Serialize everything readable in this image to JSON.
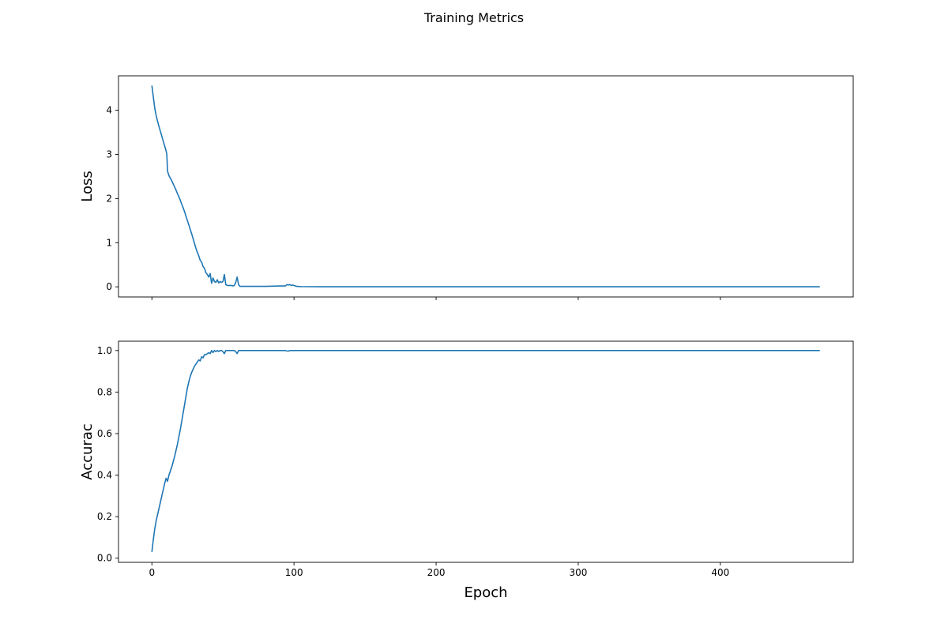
{
  "figure": {
    "title": "Training Metrics"
  },
  "chart_data": [
    {
      "type": "line",
      "ylabel": "Loss",
      "xlabel": "",
      "xlim": [
        -23.5,
        493.5
      ],
      "ylim": [
        -0.23,
        4.78
      ],
      "xticks": [
        0,
        100,
        200,
        300,
        400
      ],
      "xtick_labels_visible": false,
      "yticks": [
        0,
        1,
        2,
        3,
        4
      ],
      "ytick_labels": [
        "0",
        "1",
        "2",
        "3",
        "4"
      ],
      "grid": false,
      "color": "#1f77b4",
      "points": [
        [
          0,
          4.56
        ],
        [
          1,
          4.3
        ],
        [
          2,
          4.05
        ],
        [
          3,
          3.88
        ],
        [
          4,
          3.75
        ],
        [
          5,
          3.63
        ],
        [
          6,
          3.52
        ],
        [
          7,
          3.41
        ],
        [
          8,
          3.3
        ],
        [
          9,
          3.19
        ],
        [
          10,
          3.08
        ],
        [
          10.5,
          3.0
        ],
        [
          11,
          2.62
        ],
        [
          12,
          2.52
        ],
        [
          13,
          2.46
        ],
        [
          14,
          2.4
        ],
        [
          15,
          2.33
        ],
        [
          16,
          2.26
        ],
        [
          17,
          2.19
        ],
        [
          18,
          2.11
        ],
        [
          19,
          2.04
        ],
        [
          20,
          1.96
        ],
        [
          21,
          1.87
        ],
        [
          22,
          1.79
        ],
        [
          23,
          1.7
        ],
        [
          24,
          1.6
        ],
        [
          25,
          1.5
        ],
        [
          26,
          1.4
        ],
        [
          27,
          1.3
        ],
        [
          28,
          1.2
        ],
        [
          29,
          1.09
        ],
        [
          30,
          0.98
        ],
        [
          31,
          0.87
        ],
        [
          32,
          0.78
        ],
        [
          33,
          0.7
        ],
        [
          34,
          0.6
        ],
        [
          35,
          0.56
        ],
        [
          36,
          0.46
        ],
        [
          37,
          0.42
        ],
        [
          38,
          0.32
        ],
        [
          39,
          0.28
        ],
        [
          40,
          0.22
        ],
        [
          41,
          0.3
        ],
        [
          42,
          0.08
        ],
        [
          43,
          0.2
        ],
        [
          44,
          0.12
        ],
        [
          45,
          0.1
        ],
        [
          46,
          0.16
        ],
        [
          47,
          0.09
        ],
        [
          48,
          0.12
        ],
        [
          49,
          0.1
        ],
        [
          50,
          0.12
        ],
        [
          51,
          0.28
        ],
        [
          52,
          0.05
        ],
        [
          53,
          0.03
        ],
        [
          54,
          0.03
        ],
        [
          55,
          0.03
        ],
        [
          56,
          0.03
        ],
        [
          57,
          0.02
        ],
        [
          58,
          0.03
        ],
        [
          59,
          0.1
        ],
        [
          60,
          0.22
        ],
        [
          61,
          0.05
        ],
        [
          62,
          0.01
        ],
        [
          63,
          0.01
        ],
        [
          65,
          0.01
        ],
        [
          70,
          0.01
        ],
        [
          75,
          0.01
        ],
        [
          80,
          0.01
        ],
        [
          85,
          0.015
        ],
        [
          90,
          0.02
        ],
        [
          94,
          0.02
        ],
        [
          95,
          0.05
        ],
        [
          96,
          0.04
        ],
        [
          97,
          0.05
        ],
        [
          98,
          0.03
        ],
        [
          99,
          0.04
        ],
        [
          100,
          0.03
        ],
        [
          102,
          0.01
        ],
        [
          105,
          0.005
        ],
        [
          120,
          0.002
        ],
        [
          200,
          0.001
        ],
        [
          300,
          0.001
        ],
        [
          400,
          0.001
        ],
        [
          470,
          0.001
        ]
      ]
    },
    {
      "type": "line",
      "ylabel": "Accurac",
      "xlabel": "Epoch",
      "xlim": [
        -23.5,
        493.5
      ],
      "ylim": [
        -0.02,
        1.045
      ],
      "xticks": [
        0,
        100,
        200,
        300,
        400
      ],
      "xtick_labels": [
        "0",
        "100",
        "200",
        "300",
        "400"
      ],
      "yticks": [
        0.0,
        0.2,
        0.4,
        0.6,
        0.8,
        1.0
      ],
      "ytick_labels": [
        "0.0",
        "0.2",
        "0.4",
        "0.6",
        "0.8",
        "1.0"
      ],
      "grid": false,
      "color": "#1f77b4",
      "points": [
        [
          0,
          0.03
        ],
        [
          1,
          0.09
        ],
        [
          2,
          0.14
        ],
        [
          3,
          0.18
        ],
        [
          4,
          0.21
        ],
        [
          5,
          0.24
        ],
        [
          6,
          0.27
        ],
        [
          7,
          0.3
        ],
        [
          8,
          0.33
        ],
        [
          9,
          0.36
        ],
        [
          10,
          0.385
        ],
        [
          11,
          0.37
        ],
        [
          12,
          0.4
        ],
        [
          13,
          0.42
        ],
        [
          14,
          0.44
        ],
        [
          15,
          0.465
        ],
        [
          16,
          0.49
        ],
        [
          17,
          0.52
        ],
        [
          18,
          0.55
        ],
        [
          19,
          0.585
        ],
        [
          20,
          0.62
        ],
        [
          21,
          0.66
        ],
        [
          22,
          0.7
        ],
        [
          23,
          0.74
        ],
        [
          24,
          0.78
        ],
        [
          25,
          0.82
        ],
        [
          26,
          0.85
        ],
        [
          27,
          0.875
        ],
        [
          28,
          0.895
        ],
        [
          29,
          0.91
        ],
        [
          30,
          0.925
        ],
        [
          31,
          0.935
        ],
        [
          32,
          0.945
        ],
        [
          33,
          0.955
        ],
        [
          34,
          0.95
        ],
        [
          35,
          0.97
        ],
        [
          36,
          0.965
        ],
        [
          37,
          0.98
        ],
        [
          38,
          0.98
        ],
        [
          39,
          0.985
        ],
        [
          40,
          0.99
        ],
        [
          41,
          0.985
        ],
        [
          42,
          1.0
        ],
        [
          43,
          0.99
        ],
        [
          44,
          1.0
        ],
        [
          45,
          0.995
        ],
        [
          46,
          1.0
        ],
        [
          47,
          0.995
        ],
        [
          48,
          1.0
        ],
        [
          49,
          1.0
        ],
        [
          50,
          0.995
        ],
        [
          51,
          0.985
        ],
        [
          52,
          1.0
        ],
        [
          53,
          1.0
        ],
        [
          54,
          1.0
        ],
        [
          55,
          1.0
        ],
        [
          56,
          1.0
        ],
        [
          57,
          1.0
        ],
        [
          58,
          1.0
        ],
        [
          59,
          0.995
        ],
        [
          60,
          0.985
        ],
        [
          61,
          1.0
        ],
        [
          62,
          1.0
        ],
        [
          65,
          1.0
        ],
        [
          70,
          1.0
        ],
        [
          80,
          1.0
        ],
        [
          90,
          1.0
        ],
        [
          94,
          1.0
        ],
        [
          95,
          0.998
        ],
        [
          96,
          0.997
        ],
        [
          97,
          1.0
        ],
        [
          100,
          1.0
        ],
        [
          200,
          1.0
        ],
        [
          300,
          1.0
        ],
        [
          400,
          1.0
        ],
        [
          470,
          1.0
        ]
      ]
    }
  ]
}
